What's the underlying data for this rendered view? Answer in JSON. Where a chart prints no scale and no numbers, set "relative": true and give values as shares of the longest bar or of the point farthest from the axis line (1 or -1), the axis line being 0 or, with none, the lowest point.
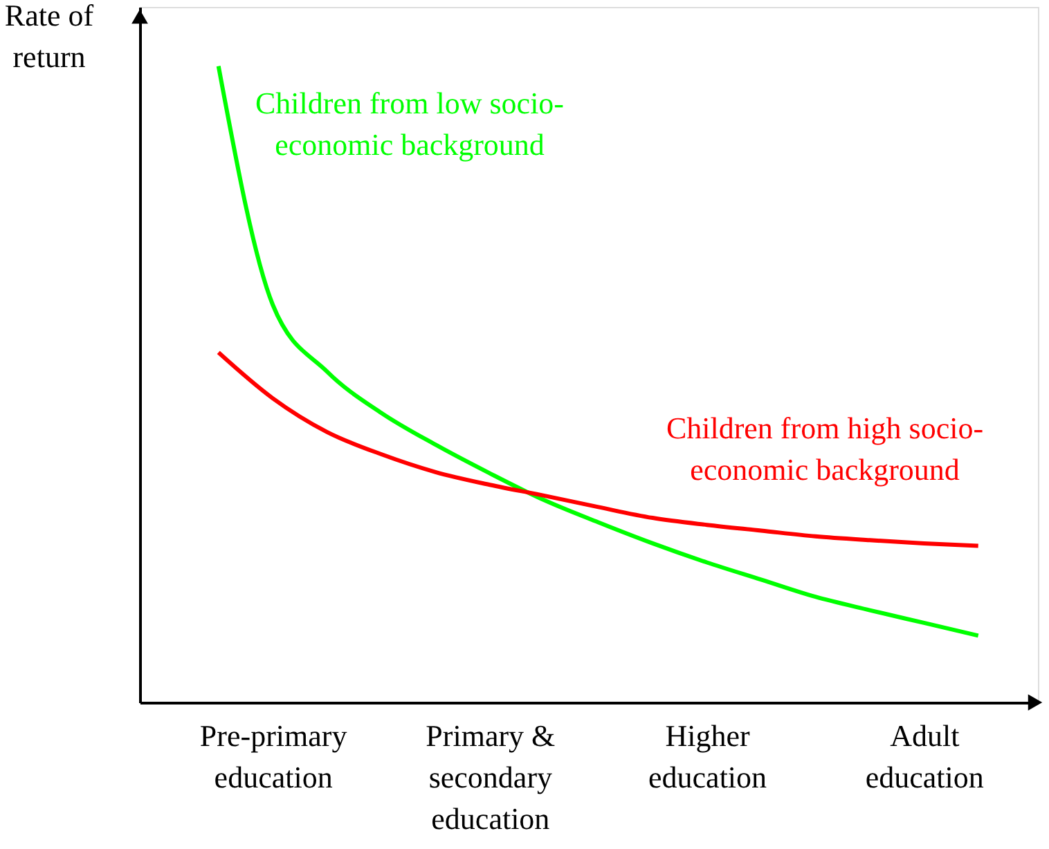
{
  "chart_data": {
    "type": "line",
    "relative": true,
    "ylabel": "Rate of return",
    "categories": [
      null,
      "Pre-primary education",
      null,
      null,
      null,
      "Primary & secondary education",
      null,
      null,
      null,
      "Higher education",
      null,
      null,
      null,
      "Adult education",
      null
    ],
    "grid": false,
    "marker": "none",
    "line_style": "solid",
    "series": [
      {
        "name": "Children from low socio-economic background",
        "color": "#00ff00",
        "values": [
          1.0,
          0.625,
          0.52,
          0.455,
          0.405,
          0.36,
          0.318,
          0.283,
          0.25,
          0.22,
          0.193,
          0.166,
          0.145,
          0.125,
          0.105
        ]
      },
      {
        "name": "Children from high socio-economic background",
        "color": "#ff0000",
        "values": [
          0.55,
          0.478,
          0.425,
          0.39,
          0.362,
          0.342,
          0.325,
          0.307,
          0.29,
          0.279,
          0.27,
          0.261,
          0.255,
          0.25,
          0.246
        ]
      }
    ]
  }
}
